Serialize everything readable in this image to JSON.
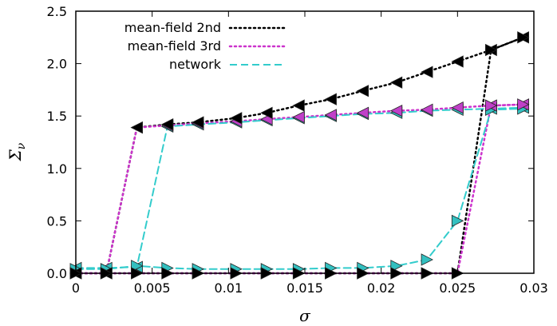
{
  "chart_data": {
    "type": "line",
    "xlabel": "σ",
    "ylabel": "Σ",
    "ylabel_sub": "ν",
    "xlim": [
      0,
      0.03
    ],
    "ylim": [
      0,
      2.5
    ],
    "x_ticks": [
      0,
      0.005,
      0.01,
      0.015,
      0.02,
      0.025,
      0.03
    ],
    "x_tick_labels": [
      "0",
      "0.005",
      "0.01",
      "0.015",
      "0.02",
      "0.025",
      "0.03"
    ],
    "y_ticks": [
      0,
      0.5,
      1.0,
      1.5,
      2.0,
      2.5
    ],
    "y_tick_labels": [
      "0.0",
      "0.5",
      "1.0",
      "1.5",
      "2.0",
      "2.5"
    ],
    "grid": false,
    "legend_position": "top-left",
    "series": [
      {
        "name": "mean-field 2nd",
        "color": "#000000",
        "dash": "dotted",
        "marker_color": "#000000",
        "branches": [
          {
            "direction": "left",
            "x": [
              0,
              0.002,
              0.004,
              0.006,
              0.008,
              0.0105,
              0.0125,
              0.0146,
              0.0167,
              0.0188,
              0.021,
              0.023,
              0.025,
              0.0272,
              0.0293
            ],
            "y": [
              0.0,
              0.0,
              1.39,
              1.42,
              1.44,
              1.48,
              1.53,
              1.6,
              1.66,
              1.74,
              1.82,
              1.92,
              2.02,
              2.13,
              2.25
            ]
          },
          {
            "direction": "right",
            "x": [
              0,
              0.002,
              0.004,
              0.006,
              0.008,
              0.0105,
              0.0125,
              0.0146,
              0.0167,
              0.0188,
              0.021,
              0.023,
              0.025,
              0.0272,
              0.0293
            ],
            "y": [
              0.0,
              0.0,
              0.0,
              0.0,
              0.0,
              0.0,
              0.0,
              0.0,
              0.0,
              0.0,
              0.0,
              0.0,
              0.0,
              2.13,
              2.25
            ]
          }
        ]
      },
      {
        "name": "mean-field 3rd",
        "color": "#cc33cc",
        "dash": "dotted",
        "marker_color": "#c040c8",
        "branches": [
          {
            "direction": "left",
            "x": [
              0,
              0.002,
              0.004,
              0.006,
              0.008,
              0.0105,
              0.0125,
              0.0146,
              0.0167,
              0.0188,
              0.021,
              0.023,
              0.025,
              0.0272,
              0.0293
            ],
            "y": [
              0.0,
              0.0,
              1.39,
              1.41,
              1.43,
              1.45,
              1.47,
              1.49,
              1.51,
              1.53,
              1.55,
              1.56,
              1.58,
              1.6,
              1.61
            ]
          },
          {
            "direction": "right",
            "x": [
              0,
              0.002,
              0.004,
              0.006,
              0.008,
              0.0105,
              0.0125,
              0.0146,
              0.0167,
              0.0188,
              0.021,
              0.023,
              0.025,
              0.0272,
              0.0293
            ],
            "y": [
              0.0,
              0.0,
              0.0,
              0.0,
              0.0,
              0.0,
              0.0,
              0.0,
              0.0,
              0.0,
              0.0,
              0.0,
              0.0,
              1.6,
              1.61
            ]
          }
        ]
      },
      {
        "name": "network",
        "color": "#33cccc",
        "dash": "dashed",
        "marker_color": "#33c0c0",
        "branches": [
          {
            "direction": "left",
            "x": [
              0,
              0.002,
              0.004,
              0.006,
              0.008,
              0.0105,
              0.0125,
              0.0146,
              0.0167,
              0.0188,
              0.021,
              0.023,
              0.025,
              0.0272,
              0.0293
            ],
            "y": [
              0.05,
              0.05,
              0.06,
              1.4,
              1.42,
              1.44,
              1.46,
              1.48,
              1.5,
              1.52,
              1.53,
              1.55,
              1.56,
              1.57,
              1.58
            ]
          },
          {
            "direction": "right",
            "x": [
              0,
              0.002,
              0.004,
              0.006,
              0.008,
              0.0105,
              0.0125,
              0.0146,
              0.0167,
              0.0188,
              0.021,
              0.023,
              0.025,
              0.0272,
              0.0293
            ],
            "y": [
              0.04,
              0.04,
              0.07,
              0.05,
              0.04,
              0.04,
              0.04,
              0.04,
              0.05,
              0.05,
              0.07,
              0.13,
              0.5,
              1.56,
              1.57
            ]
          }
        ]
      }
    ]
  }
}
